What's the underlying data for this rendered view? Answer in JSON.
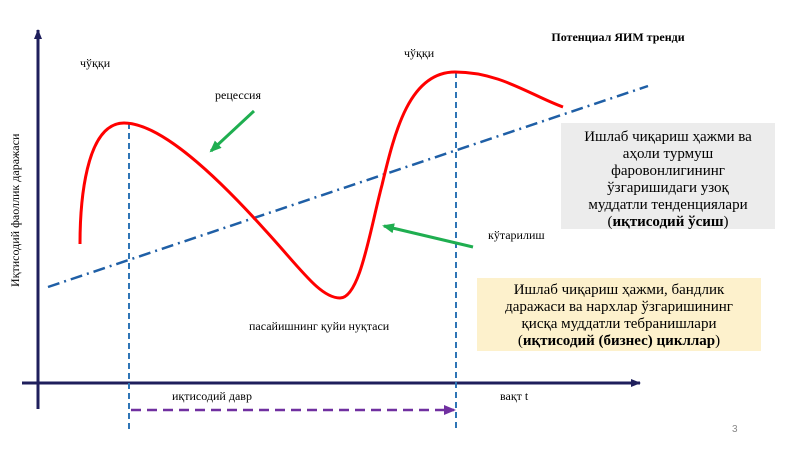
{
  "y_axis_label": "Иқтисодий фаоллик даражаси",
  "x_axis_label": "вақт  t",
  "labels": {
    "peak_left": "чўққи",
    "peak_right": "чўққи",
    "recession": "рецессия",
    "expansion": "кўтарилиш",
    "trough": "пасайишнинг қуйи нуқтаси",
    "cycle": "иқтисодий давр"
  },
  "trend_label": "Потенциал ЯИМ тренди",
  "growth_box": {
    "lines": [
      "Ишлаб чиқариш ҳажми ва",
      "аҳоли турмуш",
      "фаровонлигининг",
      "ўзгаришидаги узоқ",
      "муддатли тенденциялари"
    ],
    "open": "(",
    "bold": "иқтисодий ўсиш",
    "close": ")"
  },
  "cycle_box": {
    "lines": [
      "Ишлаб чиқариш ҳажми, бандлик",
      "даражаси ва нархлар ўзгаришининг",
      "қисқа муддатли тебранишлари"
    ],
    "open": "(",
    "bold": "иқтисодий (бизнес) цикллар",
    "close": ")"
  },
  "page_number": "3",
  "colors": {
    "axis": "#1f1f5c",
    "curve": "#ff0000",
    "trend": "#1f5fa6",
    "guide": "#2e75b6",
    "arrow_green": "#1fae50",
    "cycle_arrow": "#7030a0",
    "growth_box_bg": "#ececec",
    "cycle_box_bg": "#fdf1cc"
  }
}
